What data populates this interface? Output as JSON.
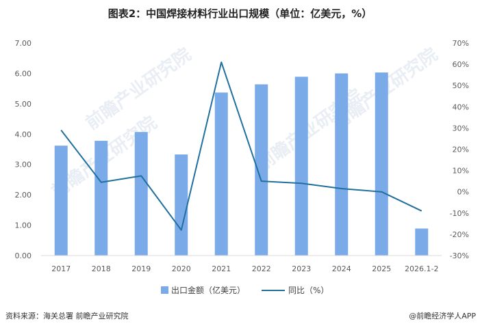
{
  "title": "图表2：中国焊接材料行业出口规模（单位：亿美元，%）",
  "source_text": "资料来源：海关总署  前瞻产业研究院",
  "brand_text": "@前瞻经济学人APP",
  "watermark_text": "前瞻产业研究院",
  "colors": {
    "bar": "#7aaae8",
    "line": "#1f6f9f",
    "axis": "#d9d9d9"
  },
  "chart_data": {
    "type": "bar",
    "categories": [
      "2017",
      "2018",
      "2019",
      "2020",
      "2021",
      "2022",
      "2023",
      "2024",
      "2025",
      "2026.1-2"
    ],
    "series": [
      {
        "name": "出口金额（亿美元）",
        "type": "bar",
        "axis": "left",
        "values": [
          3.62,
          3.78,
          4.07,
          3.33,
          5.37,
          5.64,
          5.89,
          6.0,
          6.03,
          0.89
        ]
      },
      {
        "name": "同比（%）",
        "type": "line",
        "axis": "right",
        "values": [
          29.0,
          4.5,
          7.5,
          -18.0,
          61.0,
          5.0,
          4.0,
          1.5,
          0.0,
          -9.0
        ]
      }
    ],
    "ylim_left": [
      0,
      7
    ],
    "ylim_right": [
      -30,
      70
    ],
    "yticks_left": [
      "0.00",
      "1.00",
      "2.00",
      "3.00",
      "4.00",
      "5.00",
      "6.00",
      "7.00"
    ],
    "yticks_right": [
      "-30%",
      "-20%",
      "-10%",
      "0%",
      "10%",
      "20%",
      "30%",
      "40%",
      "50%",
      "60%",
      "70%"
    ],
    "legend": [
      "出口金额（亿美元）",
      "同比（%）"
    ],
    "legend_position": "bottom",
    "grid": false
  }
}
